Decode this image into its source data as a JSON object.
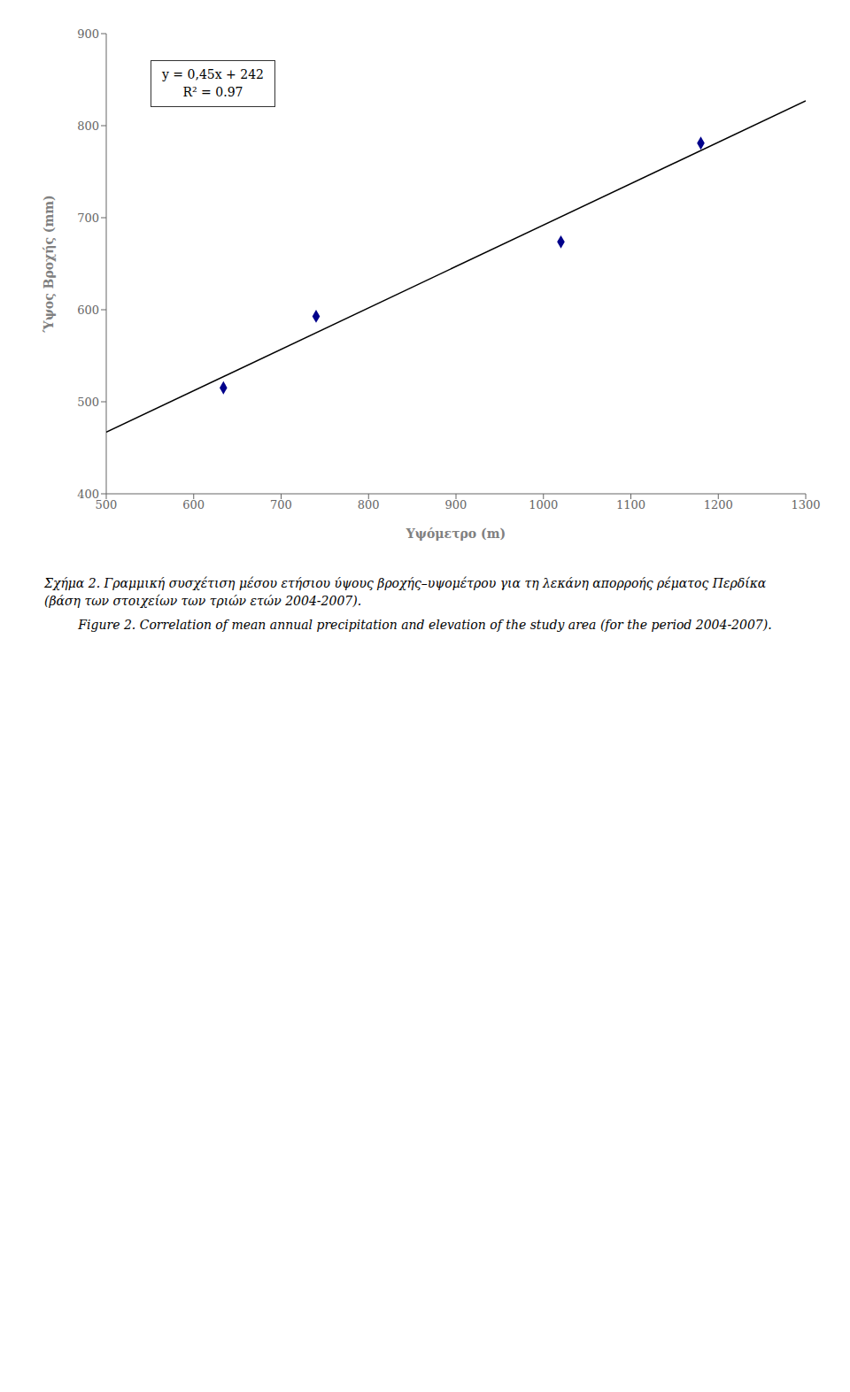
{
  "chart_data": {
    "type": "scatter",
    "title": "Σχήμα 2. Γραμμική συσχέτιση μέσου ετήσιου ύψους βροχής–υψομέτρου για τη λεκάνη απορροής ρέματος Περδίκα (βάση των στοιχείων των τριών ετών 2004-2007).",
    "subtitle": "Figure 2. Correlation of mean annual precipitation and elevation of the study area (for the period 2004-2007).",
    "xlabel": "Υψόμετρο (m)",
    "ylabel": "Ύψος Βροχής (mm)",
    "annotations": [
      "y = 0,45x + 242",
      "R² = 0.97"
    ],
    "series": [
      {
        "type": "line",
        "color": "#000000",
        "x": [
          500,
          1300
        ],
        "values": [
          467,
          827
        ]
      },
      {
        "type": "scatter",
        "color": "#00008B",
        "marker": "diamond",
        "x": [
          634,
          740,
          1020,
          1180
        ],
        "values": [
          515.2,
          592.9,
          673.7,
          781.0
        ]
      }
    ],
    "xlim": [
      500,
      1300
    ],
    "ylim": [
      400,
      900
    ],
    "xticks": [
      500,
      600,
      700,
      800,
      900,
      1000,
      1100,
      1200,
      1300
    ],
    "yticks": [
      400,
      500,
      600,
      700,
      800,
      900
    ],
    "grid": false
  }
}
